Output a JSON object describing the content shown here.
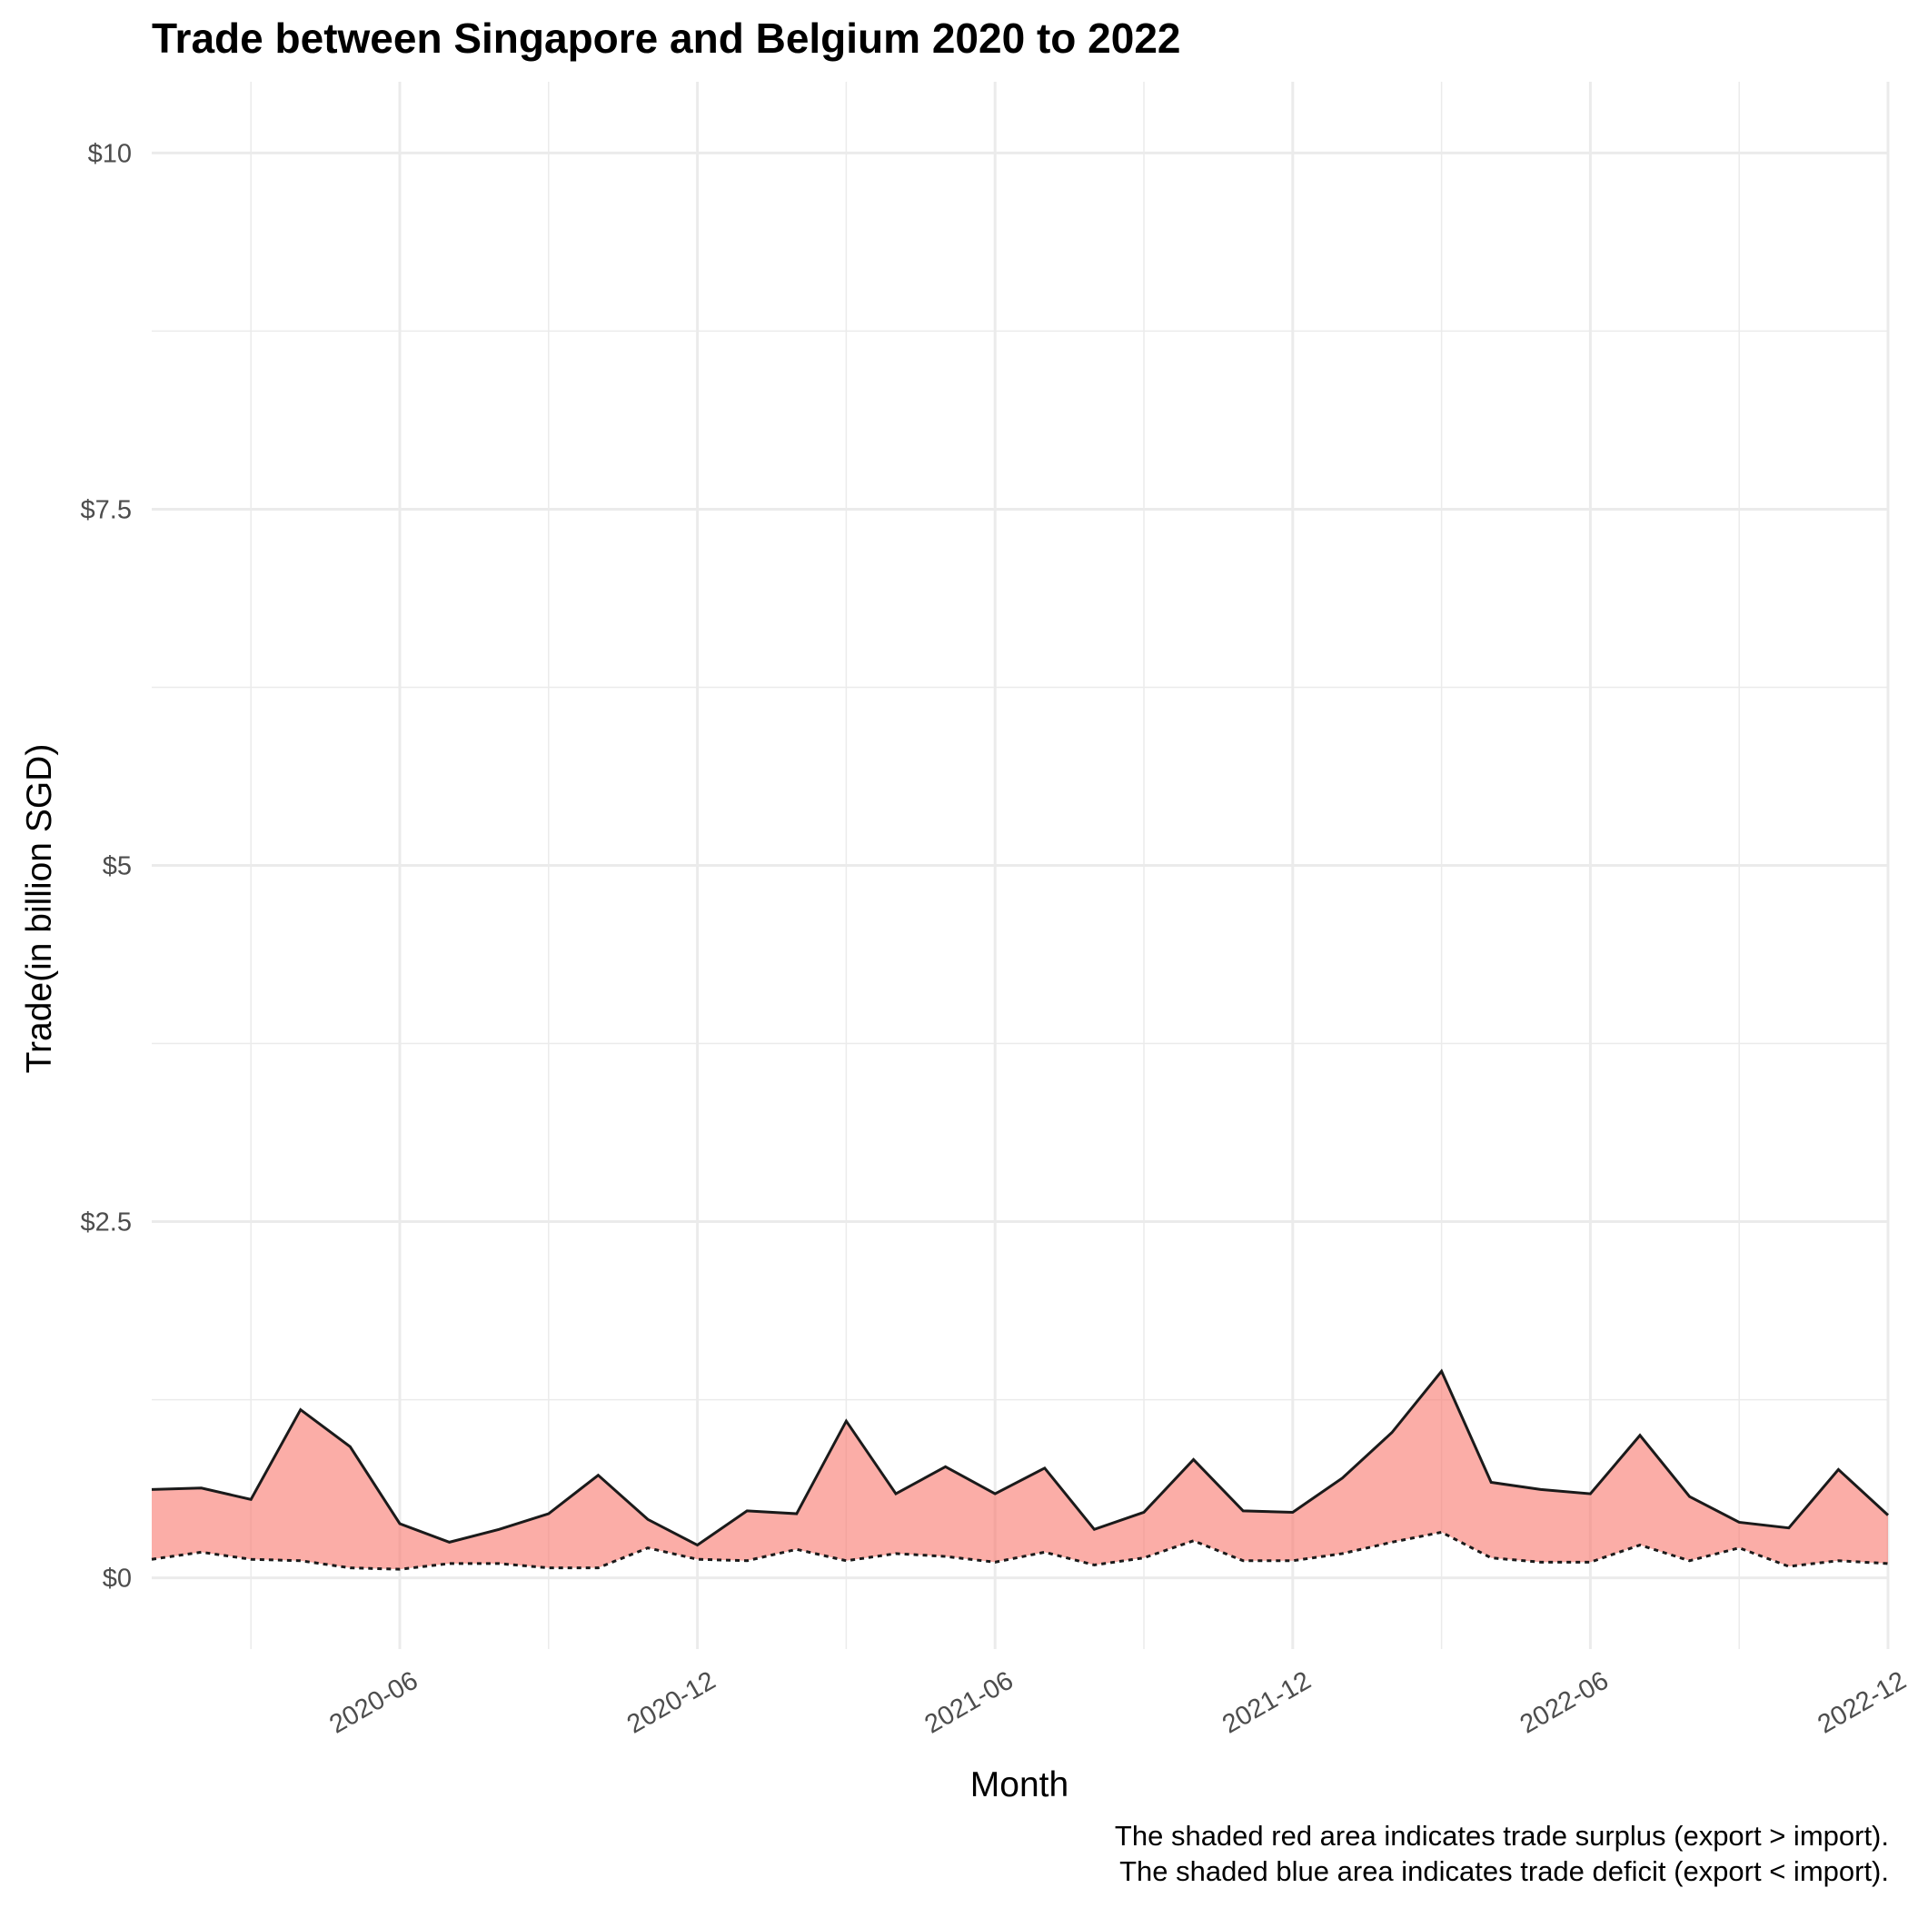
{
  "chart_data": {
    "type": "area",
    "title": "Trade between Singapore and Belgium  2020 to 2022",
    "xlabel": "Month",
    "ylabel": "Trade(in billion SGD)",
    "caption": [
      "The shaded red area indicates trade surplus (export > import).",
      "The shaded blue area indicates trade deficit (export < import)."
    ],
    "y_ticks": [
      "$0",
      "$2.5",
      "$5",
      "$7.5",
      "$10"
    ],
    "y_tick_values": [
      0,
      2.5,
      5,
      7.5,
      10
    ],
    "ylim": [
      -0.5,
      10.5
    ],
    "x_ticks": [
      "2020-06",
      "2020-12",
      "2021-06",
      "2021-12",
      "2022-06",
      "2022-12"
    ],
    "x": [
      "2020-01",
      "2020-02",
      "2020-03",
      "2020-04",
      "2020-05",
      "2020-06",
      "2020-07",
      "2020-08",
      "2020-09",
      "2020-10",
      "2020-11",
      "2020-12",
      "2021-01",
      "2021-02",
      "2021-03",
      "2021-04",
      "2021-05",
      "2021-06",
      "2021-07",
      "2021-08",
      "2021-09",
      "2021-10",
      "2021-11",
      "2021-12",
      "2022-01",
      "2022-02",
      "2022-03",
      "2022-04",
      "2022-05",
      "2022-06",
      "2022-07",
      "2022-08",
      "2022-09",
      "2022-10",
      "2022-11",
      "2022-12"
    ],
    "series": [
      {
        "line_style": "solid",
        "values": [
          0.62,
          0.63,
          0.55,
          1.18,
          0.92,
          0.38,
          0.25,
          0.34,
          0.45,
          0.72,
          0.41,
          0.23,
          0.47,
          0.45,
          1.1,
          0.59,
          0.78,
          0.59,
          0.77,
          0.34,
          0.46,
          0.83,
          0.47,
          0.46,
          0.7,
          1.02,
          1.45,
          0.67,
          0.62,
          0.59,
          1.0,
          0.57,
          0.39,
          0.35,
          0.76,
          0.44
        ]
      },
      {
        "line_style": "dotted",
        "values": [
          0.13,
          0.18,
          0.13,
          0.12,
          0.07,
          0.06,
          0.1,
          0.1,
          0.07,
          0.07,
          0.21,
          0.13,
          0.12,
          0.2,
          0.12,
          0.17,
          0.15,
          0.11,
          0.18,
          0.09,
          0.14,
          0.26,
          0.12,
          0.12,
          0.17,
          0.25,
          0.32,
          0.14,
          0.11,
          0.11,
          0.23,
          0.12,
          0.21,
          0.08,
          0.12,
          0.1
        ]
      }
    ],
    "fill": {
      "surplus": "#F8766D",
      "deficit": "#00BFC4"
    },
    "grid": true,
    "legend": "none"
  }
}
